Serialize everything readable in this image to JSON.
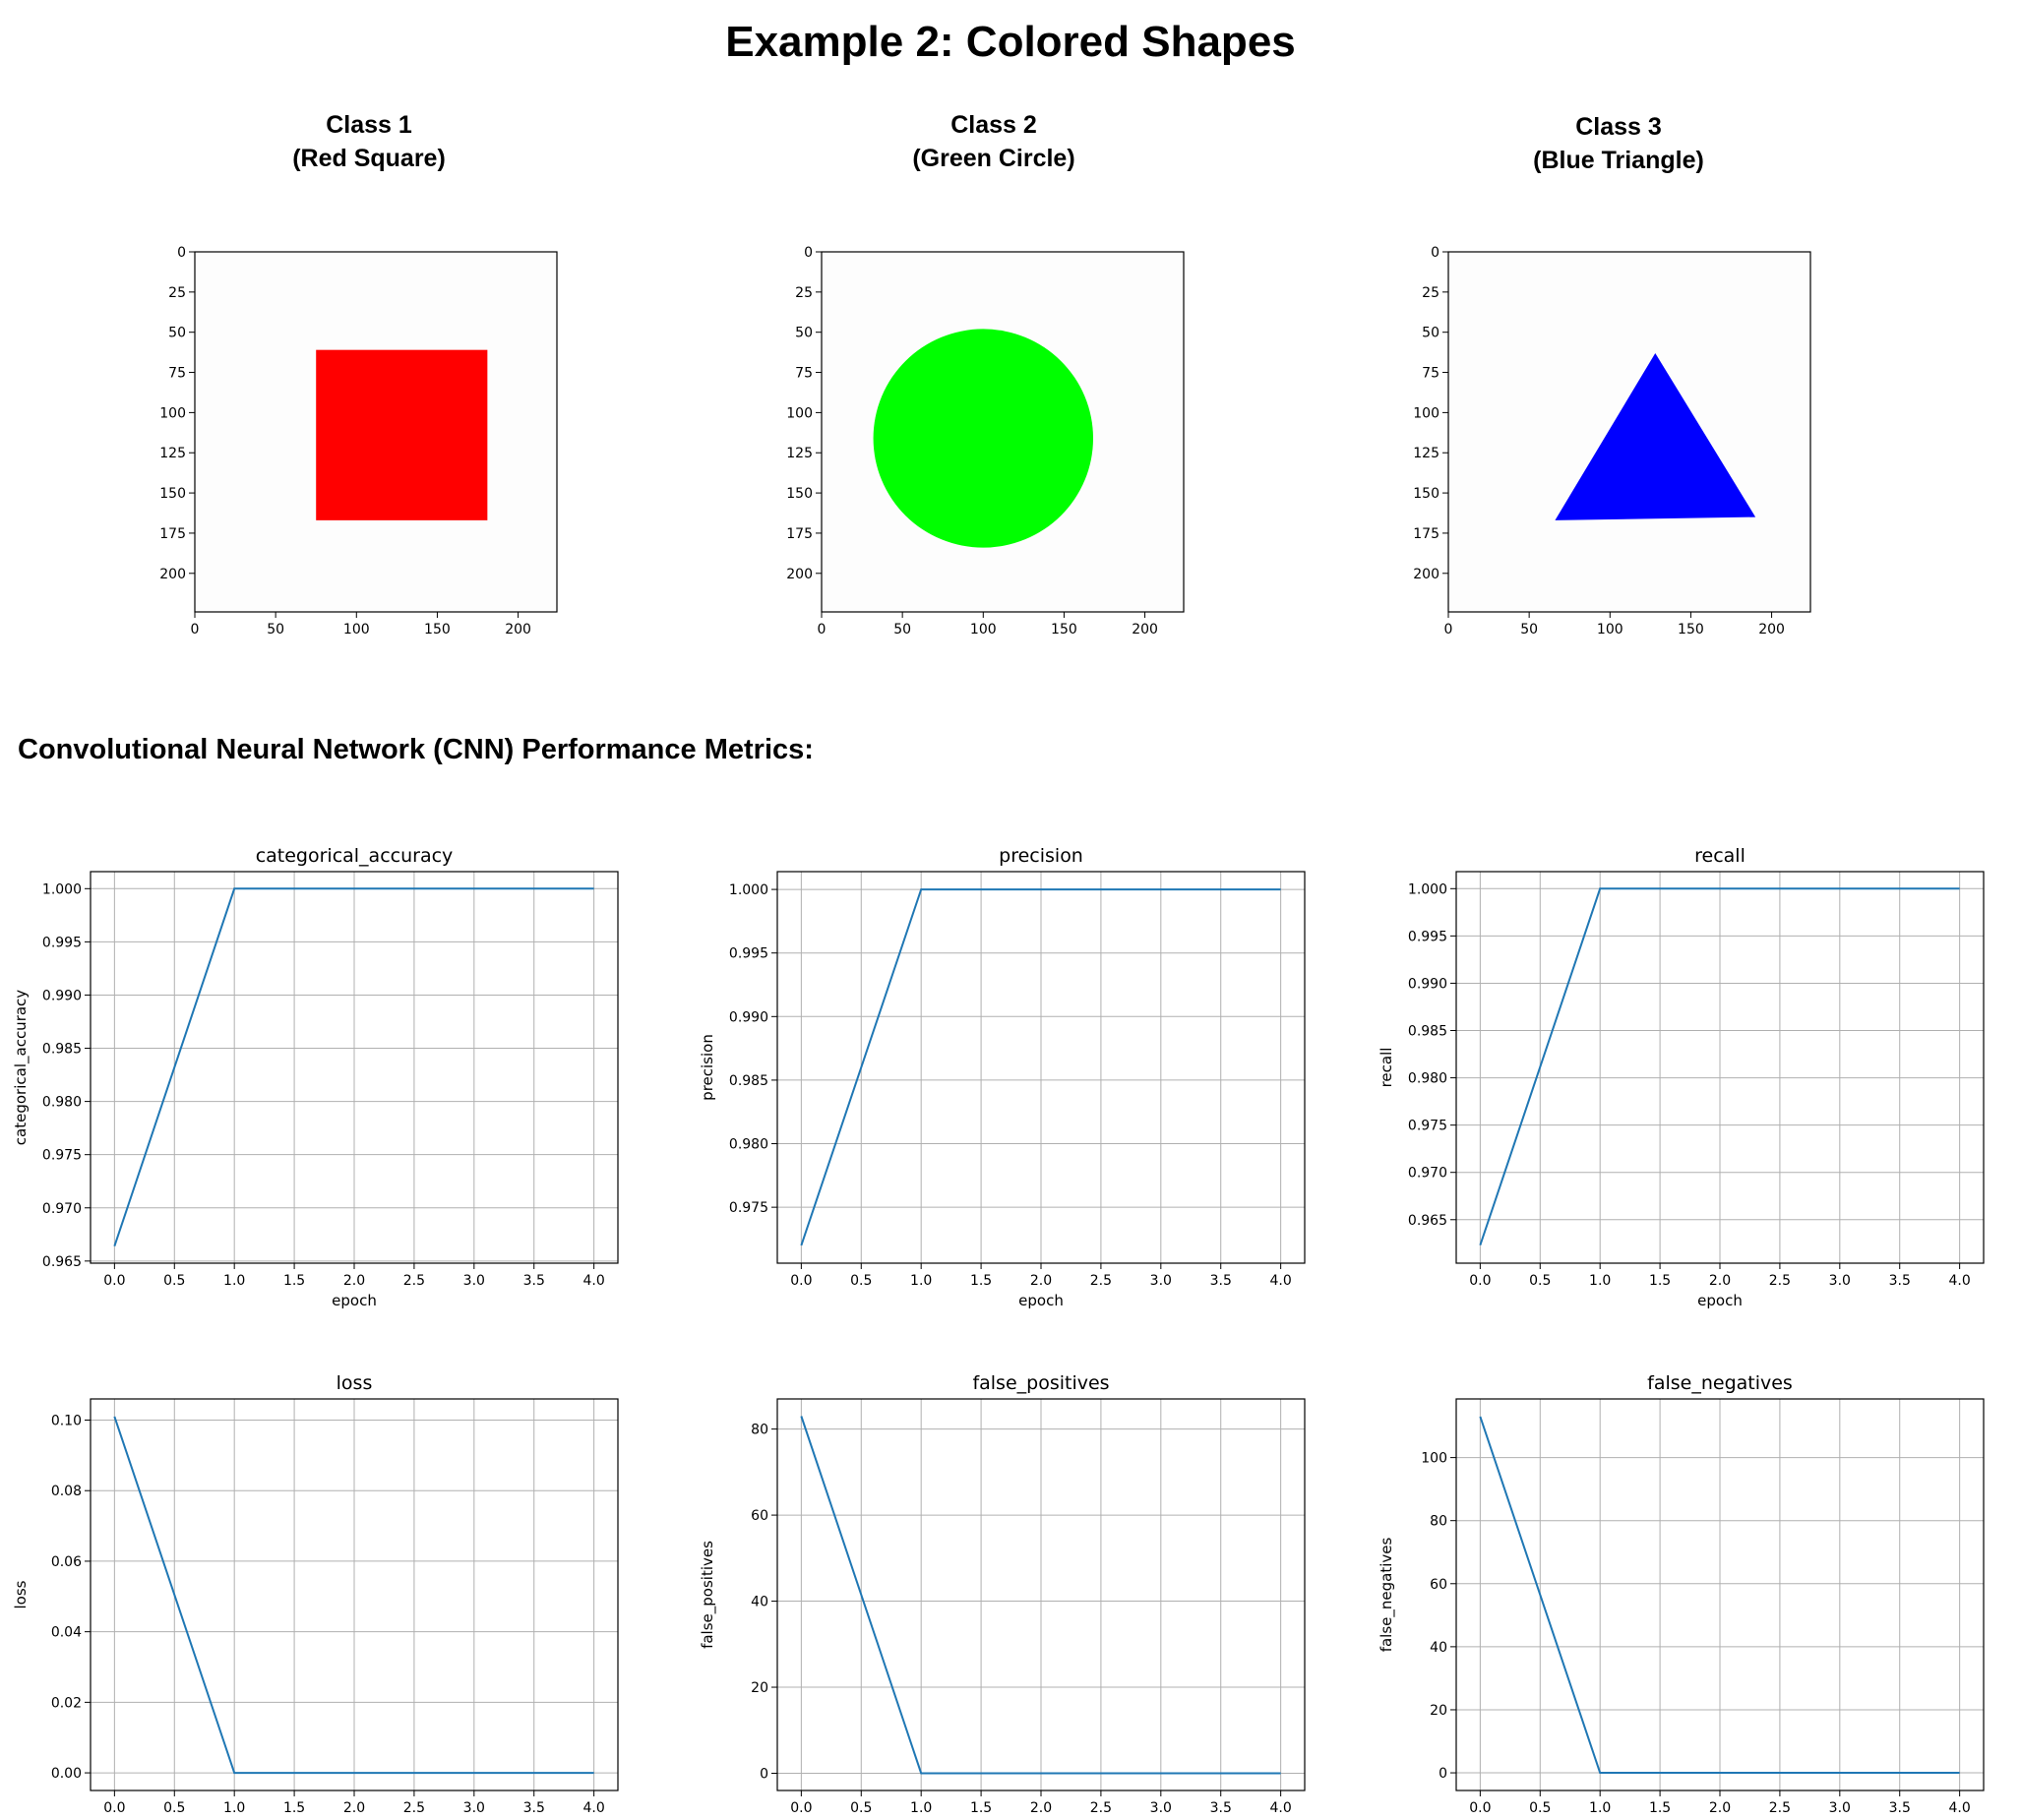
{
  "page": {
    "title": "Example 2: Colored Shapes",
    "section_title": "Convolutional Neural Network (CNN) Performance Metrics:"
  },
  "image_panels": [
    {
      "title_line1": "Class 1",
      "title_line2": "(Red Square)",
      "shape": "square",
      "color": "#ff0000",
      "extent": [
        0,
        224
      ],
      "xticks": [
        0,
        50,
        100,
        150,
        200
      ],
      "yticks": [
        0,
        25,
        50,
        75,
        100,
        125,
        150,
        175,
        200
      ],
      "shape_bounds": {
        "x0": 75,
        "x1": 181,
        "y0": 61,
        "y1": 167
      }
    },
    {
      "title_line1": "Class 2",
      "title_line2": "(Green Circle)",
      "shape": "circle",
      "color": "#00ff00",
      "extent": [
        0,
        224
      ],
      "xticks": [
        0,
        50,
        100,
        150,
        200
      ],
      "yticks": [
        0,
        25,
        50,
        75,
        100,
        125,
        150,
        175,
        200
      ],
      "shape_center": [
        100,
        116
      ],
      "shape_radius": 68
    },
    {
      "title_line1": "Class 3",
      "title_line2": "(Blue Triangle)",
      "shape": "triangle",
      "color": "#0000ff",
      "extent": [
        0,
        224
      ],
      "xticks": [
        0,
        50,
        100,
        150,
        200
      ],
      "yticks": [
        0,
        25,
        50,
        75,
        100,
        125,
        150,
        175,
        200
      ],
      "shape_points": [
        [
          128,
          63
        ],
        [
          190,
          165
        ],
        [
          66,
          167
        ]
      ]
    }
  ],
  "chart_data": [
    {
      "type": "line",
      "title": "categorical_accuracy",
      "xlabel": "epoch",
      "ylabel": "categorical_accuracy",
      "x": [
        0,
        1,
        2,
        3,
        4
      ],
      "values": [
        0.9664,
        1.0,
        1.0,
        1.0,
        1.0
      ],
      "xlim": [
        -0.2,
        4.2
      ],
      "ylim": [
        0.9648,
        1.0016
      ],
      "xticks": [
        "0.0",
        "0.5",
        "1.0",
        "1.5",
        "2.0",
        "2.5",
        "3.0",
        "3.5",
        "4.0"
      ],
      "yticks": [
        "0.965",
        "0.970",
        "0.975",
        "0.980",
        "0.985",
        "0.990",
        "0.995",
        "1.000"
      ],
      "grid": true,
      "color": "#1f77b4"
    },
    {
      "type": "line",
      "title": "precision",
      "xlabel": "epoch",
      "ylabel": "precision",
      "x": [
        0,
        1,
        2,
        3,
        4
      ],
      "values": [
        0.972,
        1.0,
        1.0,
        1.0,
        1.0
      ],
      "xlim": [
        -0.2,
        4.2
      ],
      "ylim": [
        0.9706,
        1.0014
      ],
      "xticks": [
        "0.0",
        "0.5",
        "1.0",
        "1.5",
        "2.0",
        "2.5",
        "3.0",
        "3.5",
        "4.0"
      ],
      "yticks": [
        "0.975",
        "0.980",
        "0.985",
        "0.990",
        "0.995",
        "1.000"
      ],
      "grid": true,
      "color": "#1f77b4"
    },
    {
      "type": "line",
      "title": "recall",
      "xlabel": "epoch",
      "ylabel": "recall",
      "x": [
        0,
        1,
        2,
        3,
        4
      ],
      "values": [
        0.9623,
        1.0,
        1.0,
        1.0,
        1.0
      ],
      "xlim": [
        -0.2,
        4.2
      ],
      "ylim": [
        0.9604,
        1.0018
      ],
      "xticks": [
        "0.0",
        "0.5",
        "1.0",
        "1.5",
        "2.0",
        "2.5",
        "3.0",
        "3.5",
        "4.0"
      ],
      "yticks": [
        "0.965",
        "0.970",
        "0.975",
        "0.980",
        "0.985",
        "0.990",
        "0.995",
        "1.000"
      ],
      "grid": true,
      "color": "#1f77b4"
    },
    {
      "type": "line",
      "title": "loss",
      "xlabel": "epoch",
      "ylabel": "loss",
      "x": [
        0,
        1,
        2,
        3,
        4
      ],
      "values": [
        0.101,
        0.0,
        0.0,
        0.0,
        0.0
      ],
      "xlim": [
        -0.2,
        4.2
      ],
      "ylim": [
        -0.005,
        0.106
      ],
      "xticks": [
        "0.0",
        "0.5",
        "1.0",
        "1.5",
        "2.0",
        "2.5",
        "3.0",
        "3.5",
        "4.0"
      ],
      "yticks": [
        "0.00",
        "0.02",
        "0.04",
        "0.06",
        "0.08",
        "0.10"
      ],
      "grid": true,
      "color": "#1f77b4"
    },
    {
      "type": "line",
      "title": "false_positives",
      "xlabel": "epoch",
      "ylabel": "false_positives",
      "x": [
        0,
        1,
        2,
        3,
        4
      ],
      "values": [
        83,
        0,
        0,
        0,
        0
      ],
      "xlim": [
        -0.2,
        4.2
      ],
      "ylim": [
        -4,
        87
      ],
      "xticks": [
        "0.0",
        "0.5",
        "1.0",
        "1.5",
        "2.0",
        "2.5",
        "3.0",
        "3.5",
        "4.0"
      ],
      "yticks": [
        "0",
        "20",
        "40",
        "60",
        "80"
      ],
      "grid": true,
      "color": "#1f77b4"
    },
    {
      "type": "line",
      "title": "false_negatives",
      "xlabel": "epoch",
      "ylabel": "false_negatives",
      "x": [
        0,
        1,
        2,
        3,
        4
      ],
      "values": [
        113,
        0,
        0,
        0,
        0
      ],
      "xlim": [
        -0.2,
        4.2
      ],
      "ylim": [
        -5.6,
        118.6
      ],
      "xticks": [
        "0.0",
        "0.5",
        "1.0",
        "1.5",
        "2.0",
        "2.5",
        "3.0",
        "3.5",
        "4.0"
      ],
      "yticks": [
        "0",
        "20",
        "40",
        "60",
        "80",
        "100"
      ],
      "grid": true,
      "color": "#1f77b4"
    }
  ]
}
